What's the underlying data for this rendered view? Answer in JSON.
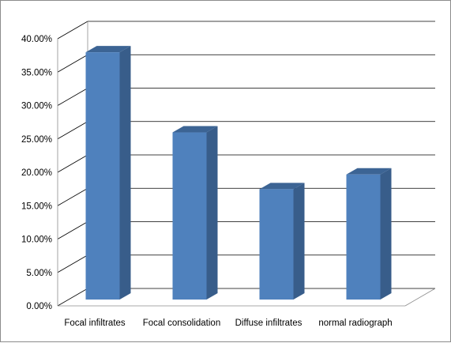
{
  "chart_data": {
    "type": "bar",
    "style": "3d-column",
    "categories": [
      "Focal infiltrates",
      "Focal consolidation",
      "Diffuse infiltrates",
      "normal radiograph"
    ],
    "values": [
      37.5,
      25.5,
      17,
      19.2
    ],
    "ylim": [
      0,
      40
    ],
    "yticks": [
      "0.00%",
      "5.00%",
      "10.00%",
      "15.00%",
      "20.00%",
      "25.00%",
      "30.00%",
      "35.00%",
      "40.00%"
    ],
    "ytick_values": [
      0,
      5,
      10,
      15,
      20,
      25,
      30,
      35,
      40
    ],
    "grid": true,
    "legend": "none",
    "colors": {
      "bar_front": "#4f81bd",
      "bar_side": "#385d8a",
      "bar_top": "#3c6494",
      "grid": "#000000",
      "wall_edge": "#8c8c8c"
    }
  }
}
